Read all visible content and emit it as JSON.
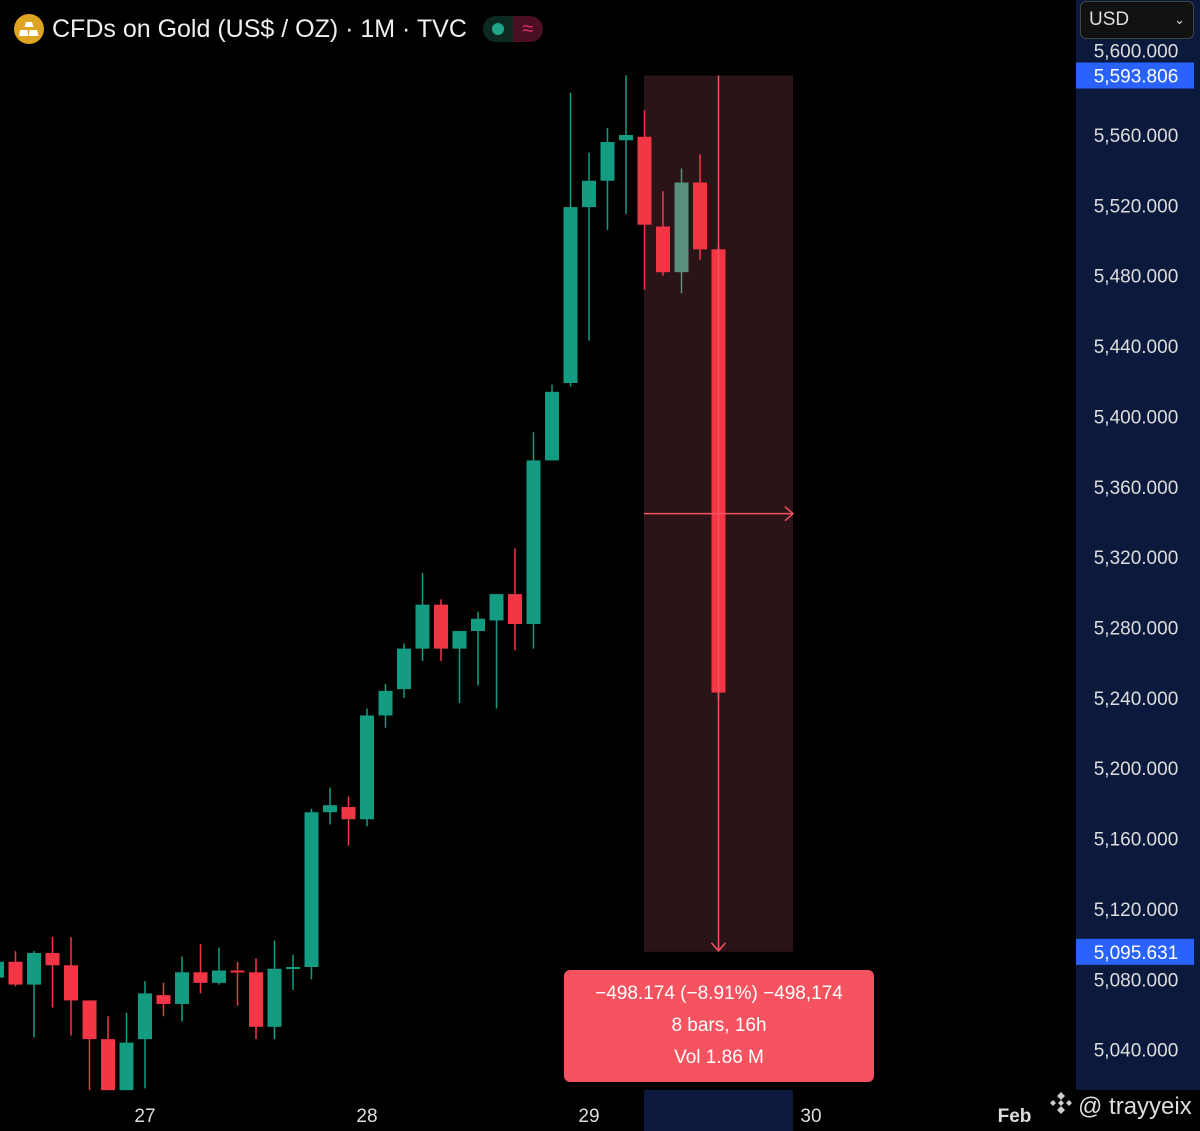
{
  "header": {
    "title": "CFDs on Gold (US$ / OZ) · 1M · TVC",
    "icon": "gold-bars-icon",
    "status_dot_color": "#1fa58a",
    "wave_symbol": "≈"
  },
  "currency_select": {
    "value": "USD"
  },
  "measure": {
    "line1": "−498.174 (−8.91%) −498,174",
    "line2": "8 bars, 16h",
    "line3": "Vol 1.86 M",
    "from_price": 5593.806,
    "to_price": 5095.631,
    "from_bar": 35,
    "to_bar": 43
  },
  "price_labels": {
    "top": "5,593.806",
    "bottom": "5,095.631",
    "partial_top": "5,600.000"
  },
  "watermark": "@ trayyeix",
  "colors": {
    "up": "#139c82",
    "down": "#f23645",
    "neutral_up": "#5a8f7e",
    "measure_bg": "#2b1417",
    "measure_line": "#f7525f",
    "axis_bg": "#0b1a3c",
    "label_bg": "#2962ff"
  },
  "chart_data": {
    "type": "candlestick",
    "ylim": [
      5020,
      5600
    ],
    "y_ticks": [
      "5,040.000",
      "5,080.000",
      "5,120.000",
      "5,160.000",
      "5,200.000",
      "5,240.000",
      "5,280.000",
      "5,320.000",
      "5,360.000",
      "5,400.000",
      "5,440.000",
      "5,480.000",
      "5,520.000",
      "5,560.000"
    ],
    "y_tick_values": [
      5040,
      5080,
      5120,
      5160,
      5200,
      5240,
      5280,
      5320,
      5360,
      5400,
      5440,
      5480,
      5520,
      5560
    ],
    "x_ticks": [
      {
        "label": "27",
        "bar": 8
      },
      {
        "label": "28",
        "bar": 20
      },
      {
        "label": "29",
        "bar": 32
      },
      {
        "label": "30",
        "bar": 44
      },
      {
        "label": "Feb",
        "bar": 55,
        "bold": true
      }
    ],
    "ohlc": [
      [
        5081,
        5091,
        5081,
        5090
      ],
      [
        5090,
        5096,
        5076,
        5077
      ],
      [
        5077,
        5096,
        5047,
        5095
      ],
      [
        5095,
        5104,
        5064,
        5088
      ],
      [
        5088,
        5104,
        5048,
        5068
      ],
      [
        5068,
        5068,
        5017,
        5046
      ],
      [
        5046,
        5059,
        5017,
        5017
      ],
      [
        5017,
        5061,
        5017,
        5044
      ],
      [
        5046,
        5079,
        5018,
        5072
      ],
      [
        5071,
        5078,
        5059,
        5066
      ],
      [
        5066,
        5093,
        5056,
        5084
      ],
      [
        5084,
        5100,
        5072,
        5078
      ],
      [
        5078,
        5098,
        5077,
        5085
      ],
      [
        5085,
        5090,
        5065,
        5084
      ],
      [
        5084,
        5092,
        5046,
        5053
      ],
      [
        5053,
        5102,
        5046,
        5086
      ],
      [
        5086,
        5094,
        5074,
        5087
      ],
      [
        5087,
        5177,
        5080,
        5175
      ],
      [
        5175,
        5189,
        5168,
        5179
      ],
      [
        5178,
        5184,
        5156,
        5171
      ],
      [
        5171,
        5234,
        5167,
        5230
      ],
      [
        5230,
        5248,
        5223,
        5244
      ],
      [
        5245,
        5271,
        5240,
        5268
      ],
      [
        5268,
        5311,
        5261,
        5293
      ],
      [
        5293,
        5296,
        5261,
        5268
      ],
      [
        5268,
        5278,
        5237,
        5278
      ],
      [
        5278,
        5289,
        5247,
        5285
      ],
      [
        5284,
        5299,
        5234,
        5299
      ],
      [
        5299,
        5325,
        5267,
        5282
      ],
      [
        5282,
        5391,
        5268,
        5375
      ],
      [
        5375,
        5418,
        5375,
        5414
      ],
      [
        5419,
        5584,
        5417,
        5519
      ],
      [
        5519,
        5550,
        5443,
        5534
      ],
      [
        5534,
        5564,
        5506,
        5556
      ],
      [
        5557,
        5594,
        5515,
        5560
      ],
      [
        5559,
        5574,
        5472,
        5509
      ],
      [
        5508,
        5528,
        5480,
        5482
      ],
      [
        5482,
        5541,
        5470,
        5533
      ],
      [
        5533,
        5549,
        5489,
        5495
      ],
      [
        5495,
        5497,
        5239,
        5243
      ]
    ]
  }
}
